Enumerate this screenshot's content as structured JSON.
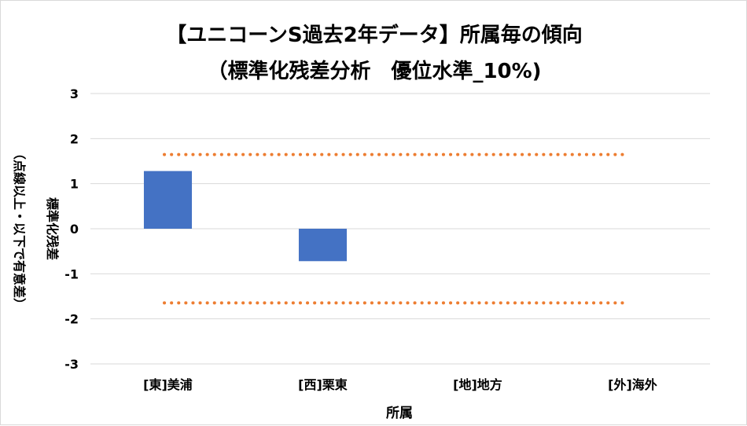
{
  "chart_data": {
    "type": "bar",
    "title_lines": [
      "【ユニコーンS過去2年データ】所属毎の傾向",
      "（標準化残差分析　優位水準_10%)"
    ],
    "xlabel": "所属",
    "ylabel_lines": [
      "標準化残差",
      "（点線以上・以下で有意差）"
    ],
    "categories": [
      "[東]美浦",
      "[西]栗東",
      "[地]地方",
      "[外]海外"
    ],
    "series": [
      {
        "values": [
          1.28,
          -0.72,
          0,
          0
        ],
        "color": "#4472C4"
      }
    ],
    "reference_lines": [
      {
        "value": 1.645,
        "color": "#ED7D31",
        "style": "dotted"
      },
      {
        "value": -1.645,
        "color": "#ED7D31",
        "style": "dotted"
      }
    ],
    "ylim": [
      -3,
      3
    ],
    "yticks": [
      "3",
      "2",
      "1",
      "0",
      "-1",
      "-2",
      "-3"
    ],
    "ytick_values": [
      3,
      2,
      1,
      0,
      -1,
      -2,
      -3
    ],
    "grid": true,
    "legend": "none"
  }
}
